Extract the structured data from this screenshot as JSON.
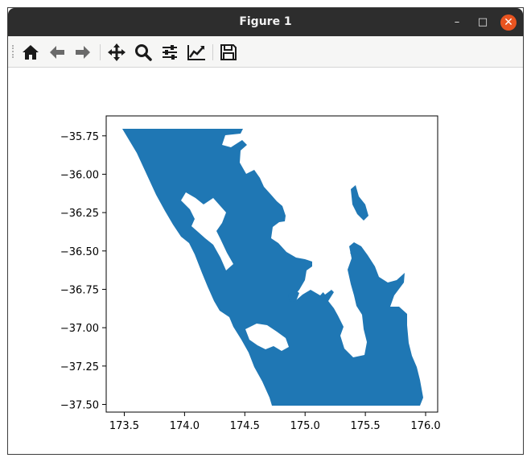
{
  "window": {
    "title": "Figure 1",
    "minimize_label": "–",
    "maximize_label": "□",
    "close_label": "✕",
    "close_color": "#e95420"
  },
  "toolbar": {
    "buttons": [
      {
        "name": "home-icon",
        "label": "Home"
      },
      {
        "name": "back-icon",
        "label": "Back"
      },
      {
        "name": "forward-icon",
        "label": "Forward"
      },
      {
        "name": "pan-icon",
        "label": "Pan"
      },
      {
        "name": "zoom-icon",
        "label": "Zoom"
      },
      {
        "name": "subplots-icon",
        "label": "Configure subplots"
      },
      {
        "name": "edit-axis-icon",
        "label": "Edit axis"
      },
      {
        "name": "save-icon",
        "label": "Save"
      }
    ]
  },
  "chart_data": {
    "type": "map",
    "title": "",
    "xlabel": "",
    "ylabel": "",
    "xlim": [
      173.35,
      176.1
    ],
    "ylim": [
      -37.55,
      -35.62
    ],
    "xticks": [
      "173.5",
      "174.0",
      "174.5",
      "175.0",
      "175.5",
      "176.0"
    ],
    "xtick_values": [
      173.5,
      174.0,
      174.5,
      175.0,
      175.5,
      176.0
    ],
    "yticks": [
      "−35.75",
      "−36.00",
      "−36.25",
      "−36.50",
      "−36.75",
      "−37.00",
      "−37.25",
      "−37.50"
    ],
    "ytick_values": [
      -35.75,
      -36.0,
      -36.25,
      -36.5,
      -36.75,
      -37.0,
      -37.25,
      -37.5
    ],
    "fill_color": "#1f77b4",
    "grid": false
  }
}
